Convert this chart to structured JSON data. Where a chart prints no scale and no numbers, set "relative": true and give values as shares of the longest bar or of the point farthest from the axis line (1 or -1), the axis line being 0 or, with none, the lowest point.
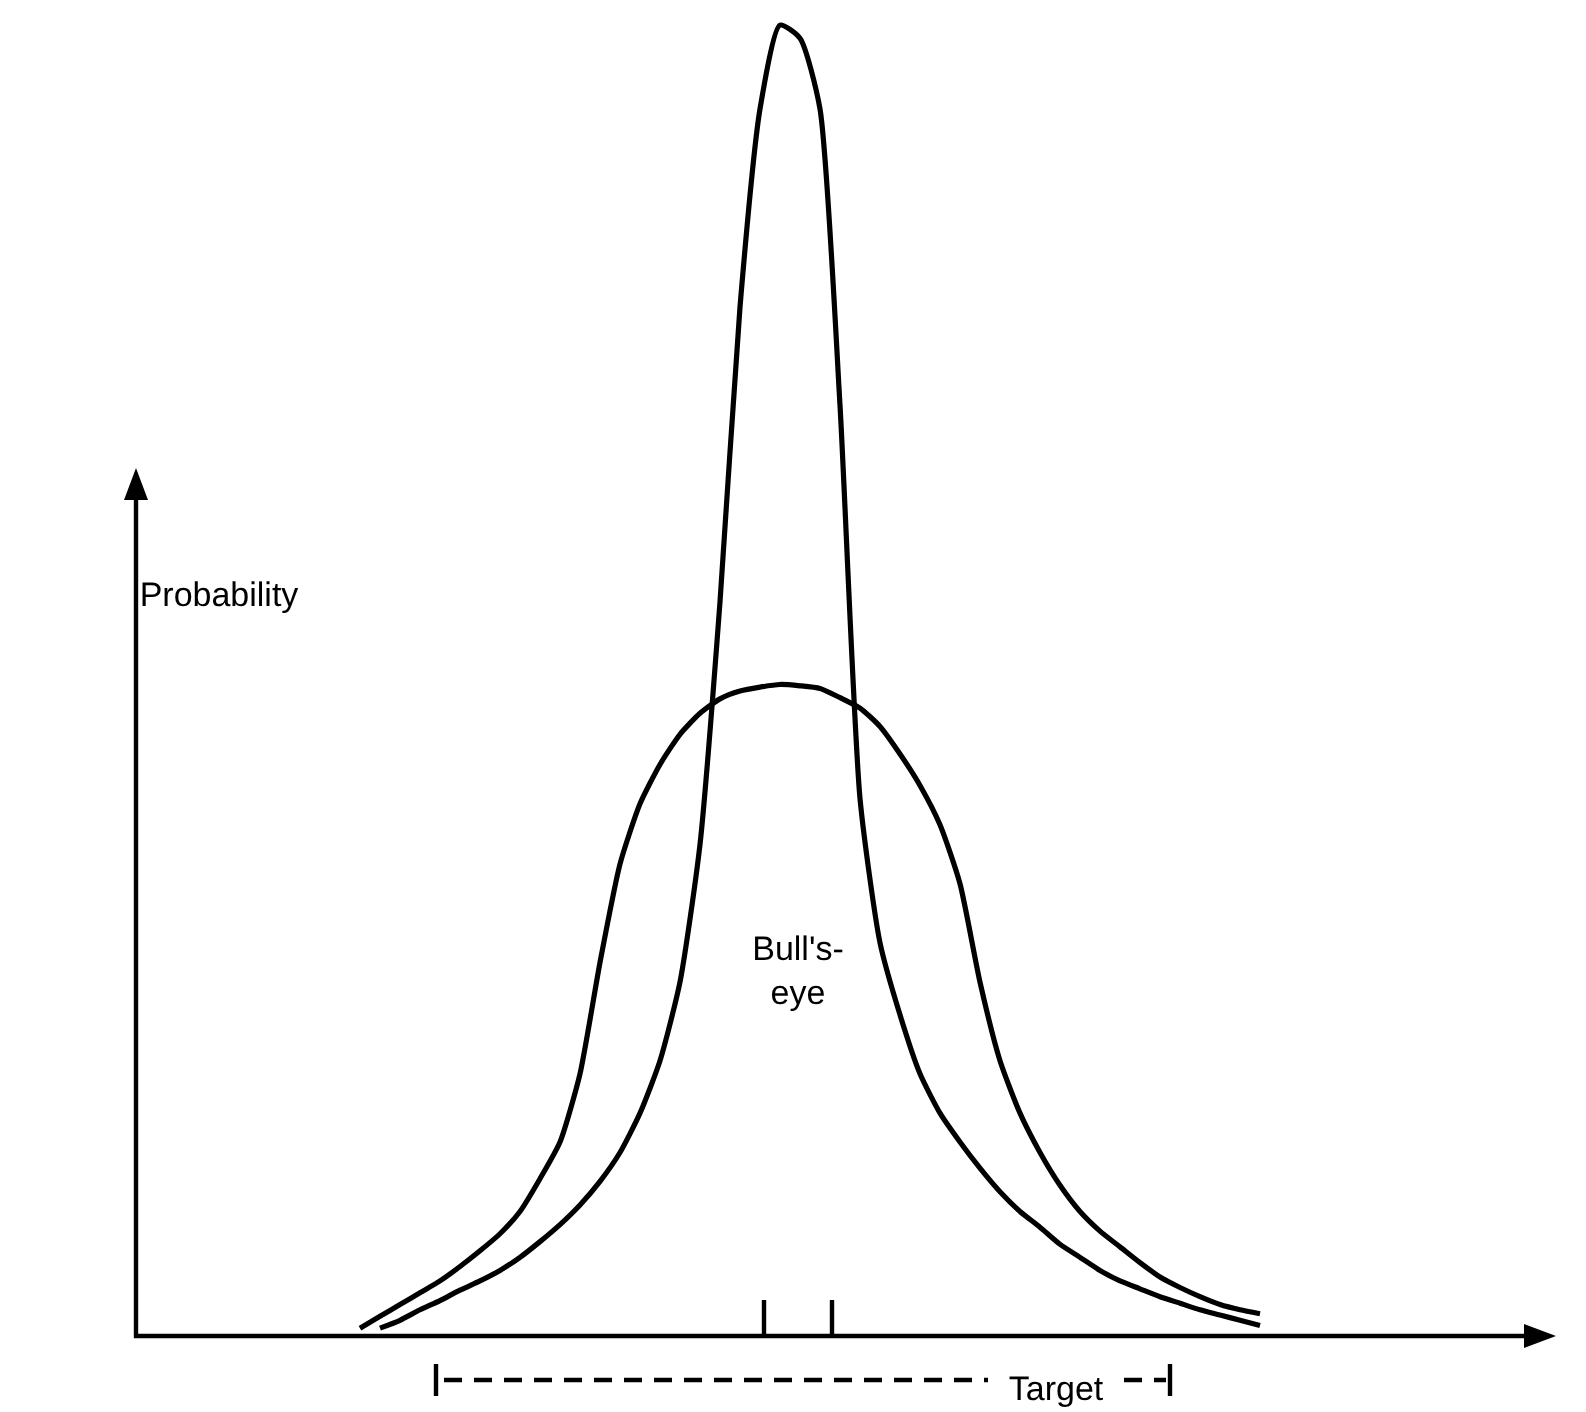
{
  "chart_data": {
    "type": "line",
    "relative": true,
    "ylabel": "Probability",
    "annotations": [
      "Bull's-eye",
      "Target"
    ],
    "categories": [
      null,
      null,
      null,
      null,
      null,
      null,
      null,
      null,
      null,
      null,
      null,
      null,
      null,
      null,
      null,
      null,
      null,
      null,
      null,
      null,
      null,
      null,
      null,
      null,
      null,
      null,
      null,
      null,
      null,
      null,
      null,
      null,
      null,
      null,
      null,
      null,
      null,
      null,
      null,
      null,
      null,
      null,
      null,
      null,
      null,
      null,
      null,
      null,
      null,
      null,
      null,
      null,
      null,
      null,
      null,
      null,
      null,
      null,
      null,
      null,
      null,
      null,
      null,
      null,
      null,
      null,
      null,
      null,
      null,
      null,
      null
    ],
    "series": [
      {
        "color": "#000000",
        "values": [
          null,
          null,
          null,
          null,
          null,
          null,
          null,
          null,
          null,
          null,
          null,
          null,
          0.006,
          0.012,
          0.02,
          0.027,
          0.035,
          0.042,
          0.05,
          0.06,
          0.072,
          0.085,
          0.1,
          0.118,
          0.14,
          0.17,
          0.21,
          0.27,
          0.375,
          0.56,
          0.785,
          0.936,
          1,
          0.99,
          0.936,
          0.71,
          0.41,
          0.3,
          0.245,
          0.2,
          0.17,
          0.148,
          0.128,
          0.11,
          0.095,
          0.083,
          0.07,
          0.06,
          0.05,
          0.042,
          0.036,
          0.03,
          0.025,
          0.02,
          0.016,
          0.012,
          0.008,
          null,
          null,
          null,
          null,
          null,
          null,
          null,
          null,
          null,
          null,
          null,
          null,
          null,
          null
        ]
      },
      {
        "color": "#000000",
        "values": [
          null,
          null,
          null,
          null,
          null,
          null,
          null,
          null,
          null,
          null,
          null,
          0.006,
          0.015,
          0.024,
          0.033,
          0.042,
          0.053,
          0.065,
          0.078,
          0.095,
          0.12,
          0.148,
          0.2,
          0.285,
          0.36,
          0.406,
          0.436,
          0.459,
          0.475,
          0.486,
          0.492,
          0.495,
          0.497,
          0.496,
          0.494,
          0.487,
          0.479,
          0.465,
          0.444,
          0.42,
          0.39,
          0.345,
          0.27,
          0.21,
          0.17,
          0.14,
          0.115,
          0.095,
          0.08,
          0.068,
          0.056,
          0.045,
          0.037,
          0.03,
          0.024,
          0.02,
          0.017,
          null,
          null,
          null,
          null,
          null,
          null,
          null,
          null,
          null,
          null,
          null,
          null,
          null,
          null
        ]
      }
    ]
  }
}
